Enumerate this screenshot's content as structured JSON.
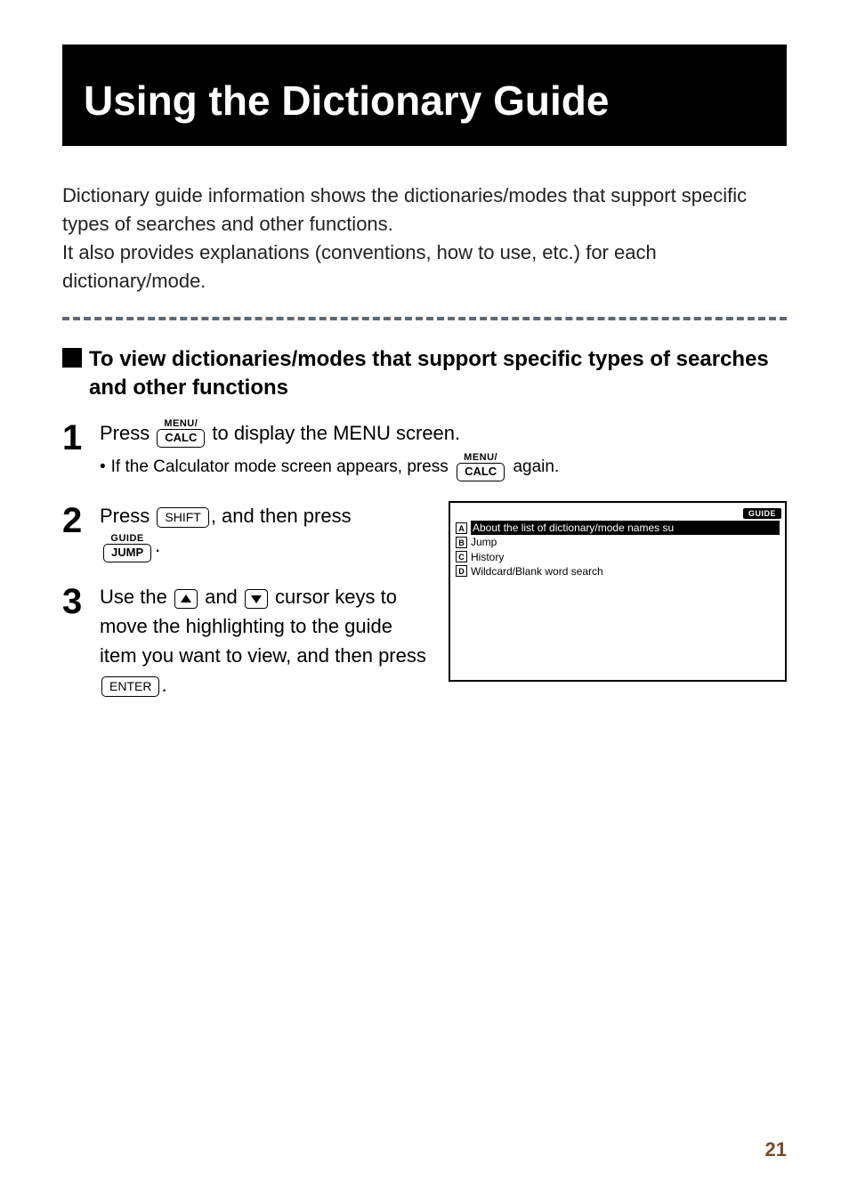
{
  "title": "Using the Dictionary Guide",
  "intro": "Dictionary guide information shows the dictionaries/modes that support specific types of searches and other functions.\nIt also provides explanations (conventions, how to use, etc.) for each dictionary/mode.",
  "section_heading": "To view dictionaries/modes that support specific types of searches and other functions",
  "steps": {
    "s1": {
      "num": "1",
      "pre": "Press",
      "key_upper": "MENU/",
      "key_lower": "CALC",
      "post": "to display the MENU screen.",
      "bullet_pre": "If the Calculator mode screen appears, press",
      "bullet_key_upper": "MENU/",
      "bullet_key_lower": "CALC",
      "bullet_post": "again."
    },
    "s2": {
      "num": "2",
      "pre": "Press",
      "shift_key": "SHIFT",
      "mid": ", and then press",
      "key_upper": "GUIDE",
      "key_lower": "JUMP",
      "post": "."
    },
    "s3": {
      "num": "3",
      "pre": "Use the",
      "mid1": "and",
      "mid2": "cursor keys to move the highlighting to the guide item you want to view, and then press",
      "enter_key": "ENTER",
      "post": "."
    }
  },
  "screenshot": {
    "pill": "GUIDE",
    "rows": [
      {
        "letter": "A",
        "text": "About the list of dictionary/mode names su",
        "highlight": true
      },
      {
        "letter": "B",
        "text": "Jump",
        "highlight": false
      },
      {
        "letter": "C",
        "text": "History",
        "highlight": false
      },
      {
        "letter": "D",
        "text": "Wildcard/Blank word search",
        "highlight": false
      }
    ]
  },
  "page_number": "21"
}
